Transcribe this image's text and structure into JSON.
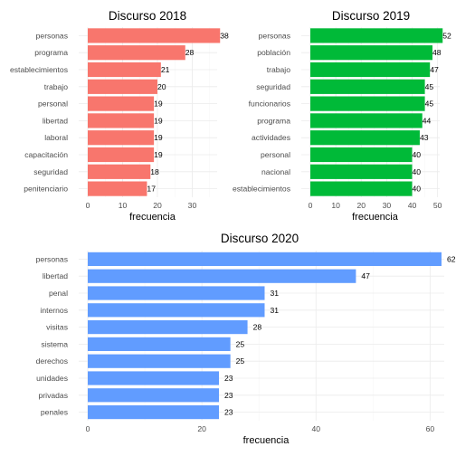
{
  "chart_data": [
    {
      "type": "bar",
      "orientation": "horizontal",
      "title": "Discurso 2018",
      "xlabel": "frecuencia",
      "ylabel": "",
      "color": "#F8766D",
      "categories": [
        "personas",
        "programa",
        "establecimientos",
        "trabajo",
        "personal",
        "libertad",
        "laboral",
        "capacitación",
        "seguridad",
        "penitenciario"
      ],
      "values": [
        38,
        28,
        21,
        20,
        19,
        19,
        19,
        19,
        18,
        17
      ],
      "xlim": [
        0,
        38
      ],
      "xticks": [
        0,
        10,
        20,
        30
      ],
      "grid": true,
      "data_labels": true
    },
    {
      "type": "bar",
      "orientation": "horizontal",
      "title": "Discurso 2019",
      "xlabel": "frecuencia",
      "ylabel": "",
      "color": "#00BA38",
      "categories": [
        "personas",
        "población",
        "trabajo",
        "seguridad",
        "funcionarios",
        "programa",
        "actividades",
        "personal",
        "nacional",
        "establecimientos"
      ],
      "values": [
        52,
        48,
        47,
        45,
        45,
        44,
        43,
        40,
        40,
        40
      ],
      "xlim": [
        0,
        52
      ],
      "xticks": [
        0,
        10,
        20,
        30,
        40,
        50
      ],
      "grid": true,
      "data_labels": true
    },
    {
      "type": "bar",
      "orientation": "horizontal",
      "title": "Discurso 2020",
      "xlabel": "frecuencia",
      "ylabel": "",
      "color": "#619CFF",
      "categories": [
        "personas",
        "libertad",
        "penal",
        "internos",
        "visitas",
        "sistema",
        "derechos",
        "unidades",
        "privadas",
        "penales"
      ],
      "values": [
        62,
        47,
        31,
        31,
        28,
        25,
        25,
        23,
        23,
        23
      ],
      "xlim": [
        0,
        62
      ],
      "xticks": [
        0,
        20,
        40,
        60
      ],
      "grid": true,
      "data_labels": true
    }
  ]
}
